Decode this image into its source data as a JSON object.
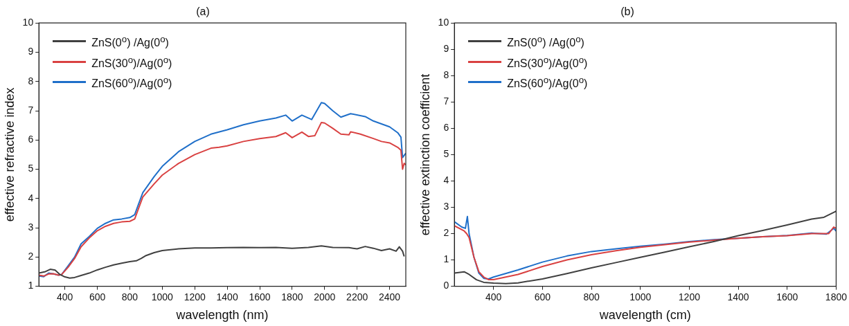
{
  "chart_data": [
    {
      "type": "line",
      "title": "(a)",
      "xlabel": "wavelength (nm)",
      "ylabel": "effective refractive index",
      "legend": "top left",
      "xlim": [
        240,
        2500
      ],
      "xticks": [
        400,
        600,
        800,
        1000,
        1200,
        1400,
        1600,
        1800,
        2000,
        2200,
        2400
      ],
      "ylim": [
        1,
        10
      ],
      "yticks": [
        1,
        2,
        3,
        4,
        5,
        6,
        7,
        8,
        9,
        10
      ],
      "series": [
        {
          "name": "ZnS(0$^{o}$) /Ag(0$^{o}$)",
          "color": "#404040",
          "x": [
            240,
            280,
            310,
            340,
            370,
            400,
            430,
            460,
            500,
            550,
            600,
            650,
            700,
            750,
            800,
            840,
            870,
            900,
            950,
            1000,
            1100,
            1200,
            1300,
            1400,
            1500,
            1600,
            1700,
            1800,
            1900,
            1980,
            2050,
            2150,
            2200,
            2250,
            2300,
            2350,
            2400,
            2440,
            2460,
            2480,
            2490
          ],
          "values": [
            1.45,
            1.5,
            1.58,
            1.55,
            1.4,
            1.32,
            1.28,
            1.3,
            1.37,
            1.45,
            1.56,
            1.65,
            1.73,
            1.79,
            1.84,
            1.87,
            1.95,
            2.05,
            2.15,
            2.22,
            2.28,
            2.31,
            2.31,
            2.32,
            2.33,
            2.32,
            2.33,
            2.3,
            2.33,
            2.38,
            2.33,
            2.32,
            2.28,
            2.36,
            2.3,
            2.22,
            2.28,
            2.2,
            2.35,
            2.2,
            2.02
          ]
        },
        {
          "name": "ZnS(30$^{o}$)/Ag(0$^{o}$)",
          "color": "#d94141",
          "x": [
            240,
            270,
            300,
            330,
            360,
            380,
            420,
            460,
            500,
            550,
            600,
            650,
            700,
            750,
            800,
            830,
            850,
            880,
            950,
            1000,
            1100,
            1200,
            1300,
            1350,
            1400,
            1500,
            1600,
            1700,
            1760,
            1800,
            1860,
            1900,
            1940,
            1980,
            2000,
            2050,
            2100,
            2150,
            2160,
            2220,
            2300,
            2350,
            2400,
            2450,
            2470,
            2480,
            2490,
            2500
          ],
          "values": [
            1.38,
            1.35,
            1.42,
            1.43,
            1.38,
            1.4,
            1.65,
            1.95,
            2.35,
            2.65,
            2.9,
            3.05,
            3.15,
            3.2,
            3.22,
            3.3,
            3.6,
            4.05,
            4.5,
            4.8,
            5.2,
            5.5,
            5.72,
            5.75,
            5.8,
            5.95,
            6.05,
            6.12,
            6.25,
            6.08,
            6.27,
            6.12,
            6.15,
            6.6,
            6.58,
            6.4,
            6.2,
            6.18,
            6.28,
            6.2,
            6.05,
            5.95,
            5.9,
            5.75,
            5.65,
            5.0,
            5.2,
            5.15
          ]
        },
        {
          "name": "ZnS(60$^{o}$)/Ag(0$^{o}$)",
          "color": "#1f6fc9",
          "x": [
            240,
            270,
            300,
            330,
            360,
            380,
            420,
            460,
            500,
            550,
            600,
            650,
            700,
            750,
            800,
            830,
            850,
            880,
            950,
            1000,
            1100,
            1200,
            1300,
            1400,
            1500,
            1600,
            1700,
            1760,
            1800,
            1860,
            1920,
            1980,
            2000,
            2050,
            2100,
            2160,
            2250,
            2300,
            2350,
            2400,
            2450,
            2470,
            2480,
            2500
          ],
          "values": [
            1.35,
            1.33,
            1.45,
            1.42,
            1.38,
            1.4,
            1.7,
            2.0,
            2.45,
            2.7,
            2.98,
            3.15,
            3.27,
            3.3,
            3.35,
            3.45,
            3.75,
            4.2,
            4.75,
            5.1,
            5.6,
            5.95,
            6.2,
            6.35,
            6.52,
            6.65,
            6.75,
            6.85,
            6.65,
            6.85,
            6.7,
            7.28,
            7.25,
            7.0,
            6.78,
            6.9,
            6.8,
            6.65,
            6.55,
            6.45,
            6.25,
            6.1,
            5.4,
            5.55
          ]
        }
      ]
    },
    {
      "type": "line",
      "title": "(b)",
      "xlabel": "wavelength (cm)",
      "ylabel": "effective extinction coefficient",
      "legend": "top left",
      "xlim": [
        240,
        1800
      ],
      "xticks": [
        400,
        600,
        800,
        1000,
        1200,
        1400,
        1600,
        1800
      ],
      "ylim": [
        0,
        10
      ],
      "yticks": [
        0,
        1,
        2,
        3,
        4,
        5,
        6,
        7,
        8,
        9,
        10
      ],
      "series": [
        {
          "name": "ZnS(0$^{o}$) /Ag(0$^{o}$)",
          "color": "#404040",
          "x": [
            240,
            280,
            300,
            330,
            360,
            400,
            450,
            500,
            600,
            700,
            800,
            900,
            1000,
            1100,
            1200,
            1300,
            1400,
            1500,
            1600,
            1700,
            1750,
            1800
          ],
          "values": [
            0.5,
            0.55,
            0.45,
            0.25,
            0.15,
            0.12,
            0.1,
            0.13,
            0.28,
            0.48,
            0.7,
            0.9,
            1.1,
            1.3,
            1.5,
            1.7,
            1.92,
            2.12,
            2.33,
            2.55,
            2.62,
            2.85
          ]
        },
        {
          "name": "ZnS(30$^{o}$)/Ag(0$^{o}$)",
          "color": "#d94141",
          "x": [
            240,
            280,
            290,
            300,
            320,
            340,
            360,
            380,
            400,
            500,
            600,
            700,
            800,
            900,
            1000,
            1100,
            1200,
            1300,
            1400,
            1500,
            1600,
            1700,
            1770,
            1790,
            1800
          ],
          "values": [
            2.3,
            2.1,
            2.0,
            1.85,
            1.1,
            0.55,
            0.35,
            0.25,
            0.25,
            0.45,
            0.75,
            1.0,
            1.2,
            1.35,
            1.48,
            1.58,
            1.68,
            1.75,
            1.82,
            1.88,
            1.92,
            2.0,
            2.0,
            2.25,
            2.2
          ]
        },
        {
          "name": "ZnS(60$^{o}$)/Ag(0$^{o}$)",
          "color": "#1f6fc9",
          "x": [
            240,
            270,
            285,
            293,
            300,
            320,
            340,
            360,
            380,
            400,
            500,
            600,
            700,
            800,
            900,
            1000,
            1100,
            1200,
            1300,
            1400,
            1500,
            1600,
            1700,
            1760,
            1790,
            1800
          ],
          "values": [
            2.45,
            2.25,
            2.2,
            2.65,
            2.0,
            1.1,
            0.5,
            0.3,
            0.28,
            0.35,
            0.62,
            0.92,
            1.15,
            1.32,
            1.42,
            1.52,
            1.6,
            1.7,
            1.77,
            1.82,
            1.88,
            1.93,
            2.02,
            1.98,
            2.2,
            2.1
          ]
        }
      ]
    }
  ]
}
